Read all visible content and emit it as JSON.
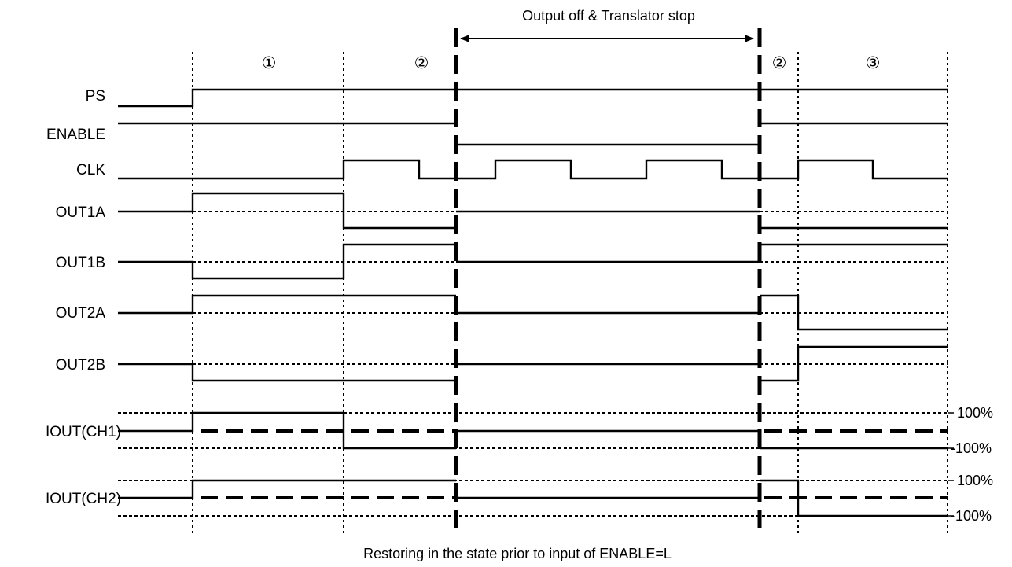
{
  "diagram": {
    "top_note": "Output off & Translator stop",
    "bottom_note": "Restoring in the state prior to input of ENABLE=L",
    "phases": [
      "①",
      "②",
      "②",
      "③"
    ],
    "signals": {
      "ps": "PS",
      "enable": "ENABLE",
      "clk": "CLK",
      "out1a": "OUT1A",
      "out1b": "OUT1B",
      "out2a": "OUT2A",
      "out2b": "OUT2B",
      "iout_ch1": "IOUT(CH1)",
      "iout_ch2": "IOUT(CH2)"
    },
    "levels": {
      "ch1_pos": "100%",
      "ch1_neg": "-100%",
      "ch2_pos": "100%",
      "ch2_neg": "-100%"
    },
    "color": "#000000"
  }
}
